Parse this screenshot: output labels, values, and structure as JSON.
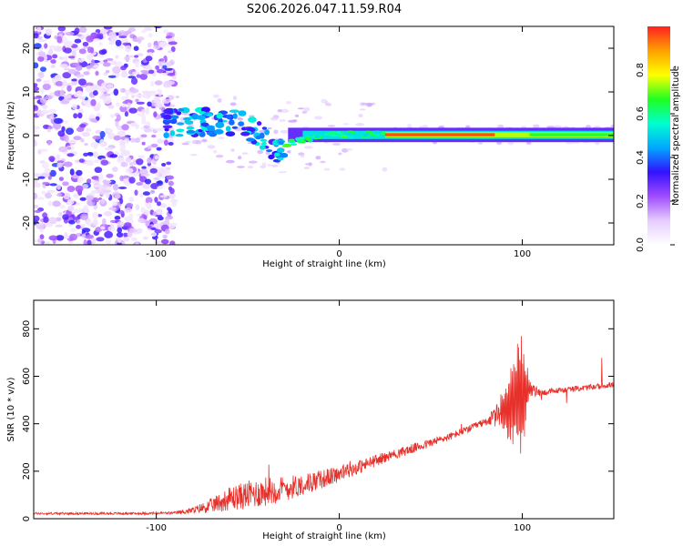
{
  "chart_data": [
    {
      "type": "heatmap",
      "title": "S206.2026.047.11.59.R04",
      "xlabel": "Height of straight line (km)",
      "ylabel": "Frequency (Hz)",
      "xlim": [
        -167,
        150
      ],
      "ylim": [
        -25,
        25
      ],
      "xticks": [
        -100,
        0,
        100
      ],
      "yticks": [
        20,
        10,
        0,
        -10,
        -20
      ],
      "colorbar": {
        "label": "Normalized spectral amplitude",
        "range": [
          0,
          1
        ],
        "ticks": [
          0.0,
          0.2,
          0.4,
          0.6,
          0.8
        ],
        "colors": [
          "#ffffff",
          "#e6ccff",
          "#a04cff",
          "#3311ff",
          "#00a8ff",
          "#00ffd0",
          "#20ff20",
          "#ffff00",
          "#ffa000",
          "#ff2020"
        ]
      },
      "regions": [
        {
          "x_range": [
            -167,
            -90
          ],
          "description": "broadband noise",
          "amplitude": 0.15
        },
        {
          "x_range": [
            -95,
            -30
          ],
          "freq_center": 2,
          "amplitude": 0.45
        },
        {
          "x_range": [
            -30,
            25
          ],
          "freq_center": 0,
          "amplitude": 0.6
        },
        {
          "x_range": [
            25,
            150
          ],
          "freq_center": 0.3,
          "amplitude": 0.95
        }
      ]
    },
    {
      "type": "line",
      "title": "",
      "xlabel": "Height of straight line (km)",
      "ylabel": "SNR (10 * v/v)",
      "xlim": [
        -167,
        150
      ],
      "ylim": [
        0,
        920
      ],
      "xticks": [
        -100,
        0,
        100
      ],
      "yticks": [
        0,
        200,
        400,
        600,
        800
      ],
      "color": "#e8302a",
      "series": [
        {
          "name": "SNR",
          "x": [
            -167,
            -150,
            -130,
            -110,
            -90,
            -80,
            -70,
            -60,
            -50,
            -40,
            -30,
            -20,
            -10,
            0,
            10,
            20,
            30,
            40,
            50,
            60,
            70,
            80,
            88,
            92,
            96,
            100,
            104,
            110,
            120,
            130,
            140,
            150
          ],
          "values": [
            22,
            22,
            22,
            22,
            24,
            35,
            55,
            85,
            100,
            115,
            125,
            145,
            165,
            190,
            215,
            245,
            270,
            295,
            320,
            345,
            375,
            410,
            440,
            470,
            500,
            520,
            545,
            530,
            540,
            548,
            556,
            565
          ],
          "noise": [
            5,
            5,
            5,
            5,
            6,
            14,
            30,
            50,
            60,
            62,
            55,
            45,
            40,
            35,
            30,
            25,
            22,
            20,
            18,
            16,
            15,
            15,
            60,
            120,
            180,
            220,
            30,
            14,
            12,
            12,
            12,
            12
          ]
        }
      ]
    }
  ]
}
